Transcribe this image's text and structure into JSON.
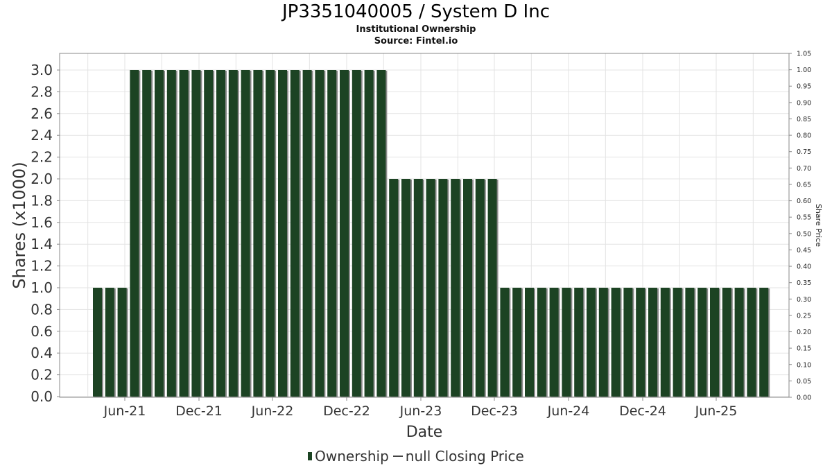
{
  "chart_data": {
    "type": "bar",
    "title": "JP3351040005 / System D Inc",
    "subtitle": "Institutional Ownership",
    "source": "Source: Fintel.io",
    "xlabel": "Date",
    "ylabel": "Shares (x1000)",
    "y2label": "Share Price",
    "ylim": [
      0,
      3.0
    ],
    "y2lim": [
      0,
      1.05
    ],
    "yticks": [
      "0.0",
      "0.2",
      "0.4",
      "0.6",
      "0.8",
      "1.0",
      "1.2",
      "1.4",
      "1.6",
      "1.8",
      "2.0",
      "2.2",
      "2.4",
      "2.6",
      "2.8",
      "3.0"
    ],
    "y2ticks": [
      "0.00",
      "0.05",
      "0.10",
      "0.15",
      "0.20",
      "0.25",
      "0.30",
      "0.35",
      "0.40",
      "0.45",
      "0.50",
      "0.55",
      "0.60",
      "0.65",
      "0.70",
      "0.75",
      "0.80",
      "0.85",
      "0.90",
      "0.95",
      "1.00",
      "1.05"
    ],
    "xticks": [
      "Jun-21",
      "Dec-21",
      "Jun-22",
      "Dec-22",
      "Jun-23",
      "Dec-23",
      "Jun-24",
      "Dec-24",
      "Jun-25"
    ],
    "grid": true,
    "legend_position": "bottom",
    "series": [
      {
        "name": "Ownership",
        "color": "#1c4323",
        "values": [
          1,
          1,
          1,
          3,
          3,
          3,
          3,
          3,
          3,
          3,
          3,
          3,
          3,
          3,
          3,
          3,
          3,
          3,
          3,
          3,
          3,
          3,
          3,
          3,
          2,
          2,
          2,
          2,
          2,
          2,
          2,
          2,
          2,
          1,
          1,
          1,
          1,
          1,
          1,
          1,
          1,
          1,
          1,
          1,
          1,
          1,
          1,
          1,
          1,
          1,
          1,
          1,
          1,
          1,
          1
        ]
      },
      {
        "name": "null Closing Price",
        "color": "#444444",
        "values": []
      }
    ]
  },
  "legend": {
    "ownership_label": "Ownership",
    "price_label": "null Closing Price"
  }
}
